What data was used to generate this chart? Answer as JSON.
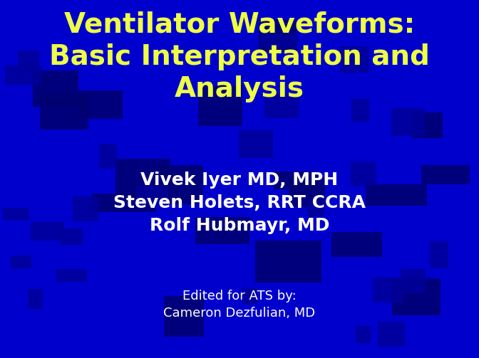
{
  "title_line1": "Ventilator Waveforms:",
  "title_line2": "Basic Interpretation and",
  "title_line3": "Analysis",
  "title_color": "#EEFF44",
  "title_fontsize": 28,
  "authors": [
    "Vivek Iyer MD, MPH",
    "Steven Holets, RRT CCRA",
    "Rolf Hubmayr, MD"
  ],
  "authors_color": "#FFFFFF",
  "authors_fontsize": 18,
  "edited_line1": "Edited for ATS by:",
  "edited_line2": "Cameron Dezfulian, MD",
  "edited_color": "#FFFFFF",
  "edited_fontsize": 13,
  "background_color": "#0000CC",
  "tile_dark1": "#000070",
  "tile_dark2": "#000099",
  "tile_base": "#0000CC",
  "fig_width": 6.72,
  "fig_height": 5.03,
  "dpi": 100
}
